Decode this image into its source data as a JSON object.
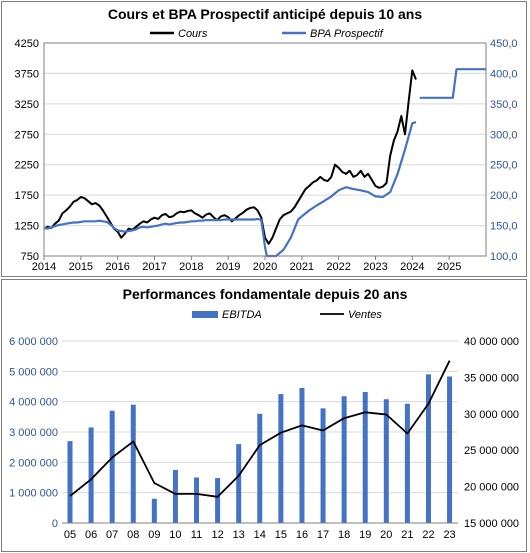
{
  "chart_data": [
    {
      "type": "line",
      "title": "Cours et BPA Prospectif anticipé depuis 10 ans",
      "legend_position": "top",
      "x_ticks": [
        "2014",
        "2015",
        "2016",
        "2017",
        "2018",
        "2019",
        "2020",
        "2021",
        "2022",
        "2023",
        "2024",
        "2025"
      ],
      "xlim": [
        2014,
        2026
      ],
      "y_left": {
        "ticks": [
          "4250",
          "3750",
          "3250",
          "2750",
          "2250",
          "1750",
          "1250",
          "750"
        ],
        "lim": [
          750,
          4250
        ]
      },
      "y_right": {
        "ticks": [
          "450,0",
          "400,0",
          "350,0",
          "300,0",
          "250,0",
          "200,0",
          "150,0",
          "100,0"
        ],
        "lim": [
          100,
          450
        ]
      },
      "grid": "horizontal",
      "series": [
        {
          "name": "Cours",
          "axis": "left",
          "color": "#000000",
          "x": [
            2014.0,
            2014.1,
            2014.2,
            2014.3,
            2014.4,
            2014.5,
            2014.6,
            2014.7,
            2014.8,
            2014.9,
            2015.0,
            2015.1,
            2015.2,
            2015.3,
            2015.4,
            2015.5,
            2015.6,
            2015.7,
            2015.8,
            2015.9,
            2016.0,
            2016.1,
            2016.2,
            2016.3,
            2016.4,
            2016.5,
            2016.6,
            2016.7,
            2016.8,
            2016.9,
            2017.0,
            2017.1,
            2017.2,
            2017.3,
            2017.4,
            2017.5,
            2017.6,
            2017.7,
            2017.8,
            2017.9,
            2018.0,
            2018.1,
            2018.2,
            2018.3,
            2018.4,
            2018.5,
            2018.6,
            2018.7,
            2018.8,
            2018.9,
            2019.0,
            2019.1,
            2019.2,
            2019.3,
            2019.4,
            2019.5,
            2019.6,
            2019.7,
            2019.8,
            2019.9,
            2020.0,
            2020.1,
            2020.2,
            2020.3,
            2020.4,
            2020.5,
            2020.6,
            2020.7,
            2020.8,
            2020.9,
            2021.0,
            2021.1,
            2021.2,
            2021.3,
            2021.4,
            2021.5,
            2021.6,
            2021.7,
            2021.8,
            2021.9,
            2022.0,
            2022.1,
            2022.2,
            2022.3,
            2022.4,
            2022.5,
            2022.6,
            2022.7,
            2022.8,
            2022.9,
            2023.0,
            2023.1,
            2023.2,
            2023.3,
            2023.4,
            2023.5,
            2023.6,
            2023.7,
            2023.8,
            2023.9,
            2024.0,
            2024.1
          ],
          "values": [
            1200,
            1230,
            1210,
            1280,
            1330,
            1450,
            1500,
            1560,
            1640,
            1670,
            1720,
            1700,
            1650,
            1600,
            1620,
            1580,
            1500,
            1400,
            1300,
            1200,
            1150,
            1050,
            1120,
            1200,
            1180,
            1230,
            1280,
            1320,
            1300,
            1350,
            1380,
            1360,
            1420,
            1440,
            1390,
            1400,
            1450,
            1480,
            1470,
            1490,
            1500,
            1450,
            1420,
            1380,
            1430,
            1450,
            1390,
            1340,
            1400,
            1420,
            1390,
            1320,
            1370,
            1420,
            1460,
            1510,
            1540,
            1550,
            1500,
            1380,
            1050,
            950,
            1050,
            1200,
            1350,
            1420,
            1450,
            1480,
            1550,
            1650,
            1750,
            1850,
            1900,
            1960,
            1990,
            2050,
            2000,
            1980,
            2050,
            2250,
            2200,
            2130,
            2100,
            2150,
            2050,
            2080,
            2150,
            2050,
            2100,
            2000,
            1900,
            1870,
            1890,
            1950,
            2400,
            2650,
            2800,
            3050,
            2750,
            3300,
            3800,
            3650
          ]
        },
        {
          "name": "BPA Prospectif",
          "axis": "right",
          "color": "#4472c4",
          "x": [
            2014.0,
            2014.1,
            2014.2,
            2014.3,
            2014.4,
            2014.5,
            2014.6,
            2014.7,
            2014.8,
            2014.9,
            2015.0,
            2015.1,
            2015.2,
            2015.3,
            2015.4,
            2015.5,
            2015.6,
            2015.7,
            2015.8,
            2015.9,
            2016.0,
            2016.1,
            2016.2,
            2016.3,
            2016.4,
            2016.5,
            2016.6,
            2016.7,
            2016.8,
            2016.9,
            2017.0,
            2017.1,
            2017.2,
            2017.3,
            2017.4,
            2017.5,
            2017.6,
            2017.7,
            2017.8,
            2017.9,
            2018.0,
            2018.1,
            2018.2,
            2018.3,
            2018.4,
            2018.5,
            2018.6,
            2018.7,
            2018.8,
            2018.9,
            2019.0,
            2019.1,
            2019.2,
            2019.3,
            2019.4,
            2019.5,
            2019.6,
            2019.7,
            2019.8,
            2019.9,
            2020.0,
            2020.05,
            2020.1,
            2020.3,
            2020.5,
            2020.7,
            2020.9,
            2021.0,
            2021.2,
            2021.4,
            2021.6,
            2021.8,
            2022.0,
            2022.2,
            2022.4,
            2022.6,
            2022.8,
            2023.0,
            2023.2,
            2023.4,
            2023.6,
            2023.8,
            2024.0,
            2024.1,
            null,
            2024.2,
            2024.4,
            2024.6,
            2024.8,
            2025.0,
            2025.1,
            2025.2,
            2025.4,
            2025.6,
            2025.8,
            2026.0
          ],
          "values": [
            146,
            145,
            147,
            149,
            151,
            152,
            153,
            154,
            155,
            155,
            156,
            157,
            157,
            157,
            157,
            158,
            157,
            156,
            152,
            146,
            142,
            141,
            140,
            141,
            142,
            144,
            147,
            148,
            147,
            148,
            149,
            150,
            152,
            153,
            152,
            153,
            154,
            155,
            155,
            156,
            157,
            157,
            158,
            158,
            159,
            159,
            159,
            159,
            159,
            160,
            160,
            160,
            160,
            160,
            160,
            160,
            160,
            160,
            161,
            159,
            115,
            100,
            100,
            100,
            110,
            130,
            160,
            165,
            175,
            183,
            190,
            198,
            208,
            213,
            210,
            208,
            205,
            198,
            197,
            205,
            235,
            275,
            318,
            320,
            null,
            360,
            360,
            360,
            360,
            360,
            360,
            407,
            407,
            407,
            407,
            407
          ]
        }
      ]
    },
    {
      "type": "bar",
      "title": "Performances fondamentale depuis 20 ans",
      "legend_position": "top",
      "categories": [
        "05",
        "06",
        "07",
        "08",
        "09",
        "10",
        "11",
        "12",
        "13",
        "14",
        "15",
        "16",
        "17",
        "18",
        "19",
        "20",
        "21",
        "22",
        "23"
      ],
      "y_left": {
        "ticks": [
          "6 000 000",
          "5 000 000",
          "4 000 000",
          "3 000 000",
          "2 000 000",
          "1 000 000",
          "0"
        ],
        "lim": [
          0,
          6000000
        ]
      },
      "y_right": {
        "ticks": [
          "40 000 000",
          "35 000 000",
          "30 000 000",
          "25 000 000",
          "20 000 000",
          "15 000 000"
        ],
        "lim": [
          15000000,
          40000000
        ]
      },
      "grid": "horizontal",
      "series": [
        {
          "name": "EBITDA",
          "type": "bar",
          "axis": "left",
          "color": "#4472c4",
          "values": [
            2700000,
            3150000,
            3700000,
            3900000,
            800000,
            1750000,
            1500000,
            1480000,
            2600000,
            3600000,
            4250000,
            4450000,
            3780000,
            4180000,
            4320000,
            4080000,
            3930000,
            4900000,
            4830000
          ]
        },
        {
          "name": "Ventes",
          "type": "line",
          "axis": "right",
          "color": "#000000",
          "values": [
            18700000,
            21000000,
            24000000,
            26200000,
            20500000,
            19000000,
            19000000,
            18600000,
            21500000,
            25700000,
            27400000,
            28400000,
            27700000,
            29400000,
            30200000,
            29900000,
            27300000,
            31400000,
            37300000
          ]
        }
      ]
    }
  ]
}
